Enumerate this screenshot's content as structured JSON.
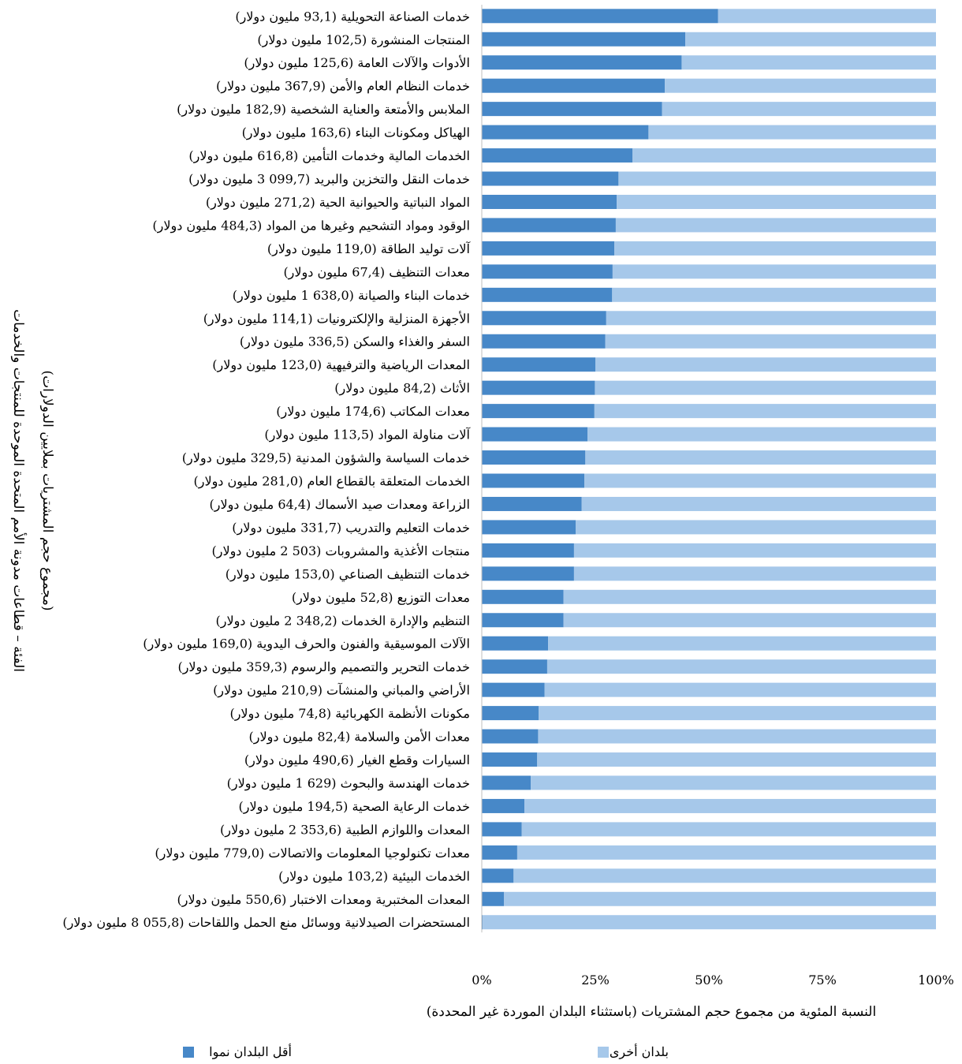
{
  "chart_data": {
    "type": "bar",
    "orientation": "horizontal",
    "stacked": true,
    "percent_stacked": true,
    "categories": [
      "خدمات الصناعة التحويلية (93,1 مليون دولار)",
      "المنتجات المنشورة (102,5 مليون دولار)",
      "الأدوات والآلات العامة (125,6 مليون دولار)",
      "خدمات النظام العام والأمن (367,9 مليون دولار)",
      "الملابس والأمتعة والعناية الشخصية (182,9 مليون دولار)",
      "الهياكل ومكونات البناء (163,6 مليون دولار)",
      "الخدمات المالية وخدمات التأمين (616,8 مليون دولار)",
      "خدمات النقل والتخزين والبريد (099,7 3 مليون دولار)",
      "المواد النباتية والحيوانية الحية (271,2 مليون دولار)",
      "الوقود ومواد التشحيم وغيرها من المواد (484,3 مليون دولار)",
      "آلات توليد الطاقة (119,0 مليون دولار)",
      "معدات التنظيف (67,4 مليون دولار)",
      "خدمات البناء والصيانة (638,0 1 مليون دولار)",
      "الأجهزة المنزلية والإلكترونيات (114,1 مليون دولار)",
      "السفر والغذاء والسكن (336,5 مليون دولار)",
      "المعدات الرياضية والترفيهية (123,0 مليون دولار)",
      "الأثاث (84,2 مليون دولار)",
      "معدات المكاتب (174,6 مليون دولار)",
      "آلات مناولة المواد (113,5 مليون دولار)",
      "خدمات السياسة والشؤون المدنية (329,5 مليون دولار)",
      "الخدمات المتعلقة بالقطاع العام (281,0 مليون دولار)",
      "الزراعة ومعدات صيد الأسماك (64,4 مليون دولار)",
      "خدمات التعليم والتدريب (331,7 مليون دولار)",
      "منتجات الأغذية والمشروبات (503 2 مليون دولار)",
      "خدمات التنظيف الصناعي (153,0 مليون دولار)",
      "معدات التوزيع (52,8 مليون دولار)",
      "التنظيم والإدارة الخدمات (348,2 2 مليون دولار)",
      "الآلات الموسيقية والفنون والحرف اليدوية (169,0 مليون دولار)",
      "خدمات التحرير والتصميم والرسوم (359,3 مليون دولار)",
      "الأراضي والمباني والمنشآت (210,9 مليون دولار)",
      "مكونات الأنظمة الكهربائية (74,8 مليون دولار)",
      "معدات الأمن والسلامة (82,4 مليون دولار)",
      "السيارات وقطع الغيار (490,6 مليون دولار)",
      "خدمات الهندسة والبحوث (629 1 مليون دولار)",
      "خدمات الرعاية الصحية (194,5 مليون دولار)",
      "المعدات واللوازم الطبية (353,6 2 مليون دولار)",
      "معدات تكنولوجيا المعلومات والاتصالات (779,0 مليون دولار)",
      "الخدمات البيئية (103,2 مليون دولار)",
      "المعدات المختبرية ومعدات الاختبار (550,6 مليون دولار)",
      "المستحضرات الصيدلانية ووسائل منع الحمل واللقاحات (055,8 8 مليون دولار)"
    ],
    "series": [
      {
        "name": "أقل البلدان نموا",
        "color": "#4788c8",
        "values": [
          52,
          44.8,
          44,
          40.3,
          39.7,
          36.7,
          33.2,
          30.1,
          29.7,
          29.5,
          29.2,
          28.8,
          28.7,
          27.4,
          27.2,
          25,
          24.9,
          24.8,
          23.3,
          22.8,
          22.6,
          22,
          20.7,
          20.3,
          20.3,
          18,
          18,
          14.6,
          14.4,
          13.8,
          12.5,
          12.4,
          12.2,
          10.8,
          9.4,
          8.8,
          7.8,
          7,
          4.9,
          0.2
        ]
      },
      {
        "name": "بلدان أخرى",
        "color": "#a6c8ea",
        "values": [
          48,
          55.2,
          56,
          59.7,
          60.3,
          63.3,
          66.8,
          69.9,
          70.3,
          70.5,
          70.8,
          71.2,
          71.3,
          72.6,
          72.8,
          75,
          75.1,
          75.2,
          76.7,
          77.2,
          77.4,
          78,
          79.3,
          79.7,
          79.7,
          82,
          82,
          85.4,
          85.6,
          86.2,
          87.5,
          87.6,
          87.8,
          89.2,
          90.6,
          91.2,
          92.2,
          93,
          95.1,
          99.8
        ]
      }
    ],
    "x_ticks": [
      "0%",
      "25%",
      "50%",
      "75%",
      "100%"
    ],
    "xlim": [
      0,
      100
    ],
    "xlabel": "النسبة المئوية من مجموع حجم المشتريات (باستثناء البلدان الموردة غير المحددة)",
    "ylabel_lines": [
      "الفئة – قطاعات مدونة الأمم المتحدة الموحدة للمنتجات والخدمات",
      "(مجموع حجم المشتريات بملايين الدولارات)"
    ],
    "grid": false,
    "legend_position": "bottom"
  }
}
